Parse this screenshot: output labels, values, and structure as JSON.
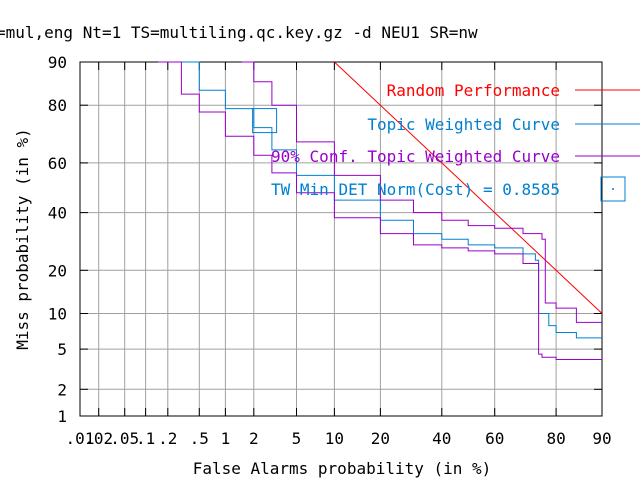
{
  "title": "=mul,eng Nt=1 TS=multiling.qc.key.gz -d NEU1 SR=nw",
  "chart_data": {
    "type": "line",
    "xlabel": "False Alarms probability (in %)",
    "ylabel": "Miss probability (in %)",
    "x_scale": "normal-deviate",
    "y_scale": "normal-deviate",
    "xlim": [
      0.01,
      90
    ],
    "ylim": [
      1,
      90
    ],
    "x_ticks": [
      0.01,
      0.02,
      0.05,
      0.1,
      0.2,
      0.5,
      1,
      2,
      5,
      10,
      20,
      40,
      60,
      80,
      90
    ],
    "x_tick_labels": [
      ".01",
      ".02",
      ".05",
      ".1",
      ".2",
      ".5",
      "1",
      "2",
      "5",
      "10",
      "20",
      "40",
      "60",
      "80",
      "90"
    ],
    "y_ticks": [
      1,
      2,
      5,
      10,
      20,
      40,
      60,
      80,
      90
    ],
    "y_tick_labels": [
      "1",
      "2",
      "5",
      "10",
      "20",
      "40",
      "60",
      "80",
      "90"
    ],
    "grid": true,
    "legend_position": "top-right",
    "series": [
      {
        "name": "Random Performance",
        "color": "#ff0000",
        "x": [
          10,
          20,
          40,
          60,
          80,
          90
        ],
        "y": [
          90,
          80,
          60,
          40,
          20,
          10
        ]
      },
      {
        "name": "Topic Weighted Curve",
        "color": "#0080d0",
        "x": [
          0.3,
          0.5,
          1,
          2,
          3,
          5,
          10,
          20,
          30,
          40,
          50,
          60,
          70,
          74,
          75,
          78,
          80,
          85,
          90
        ],
        "y": [
          90,
          84,
          79,
          73,
          65,
          55,
          45,
          37,
          32,
          30,
          28,
          27,
          25,
          23,
          10,
          8,
          7,
          6.3,
          6.3
        ]
      },
      {
        "name": "90% Conf. Topic Weighted Curve",
        "color": "#9900cc",
        "x": [
          0.15,
          0.3,
          0.5,
          1,
          2,
          3,
          5,
          10,
          20,
          30,
          40,
          50,
          60,
          70,
          75,
          76,
          80,
          85,
          90
        ],
        "y": [
          90,
          83,
          78,
          70,
          63,
          56,
          48,
          38,
          32,
          28,
          27,
          26,
          25,
          22,
          4.5,
          4.2,
          4,
          4,
          4
        ]
      },
      {
        "name": "90% Conf. Topic Weighted Curve",
        "color": "#9900cc",
        "x": [
          1.5,
          2,
          3,
          5,
          10,
          20,
          30,
          40,
          50,
          60,
          70,
          76,
          77,
          80,
          85,
          90
        ],
        "y": [
          90,
          86,
          80,
          68,
          55,
          45,
          40,
          37,
          35,
          34,
          32,
          30,
          12,
          11,
          8.5,
          8.5
        ]
      }
    ],
    "min_det_point": {
      "label": "TW Min DET Norm(Cost) = 0.8585",
      "x": 2.5,
      "y": 75,
      "color": "#0080d0"
    }
  }
}
